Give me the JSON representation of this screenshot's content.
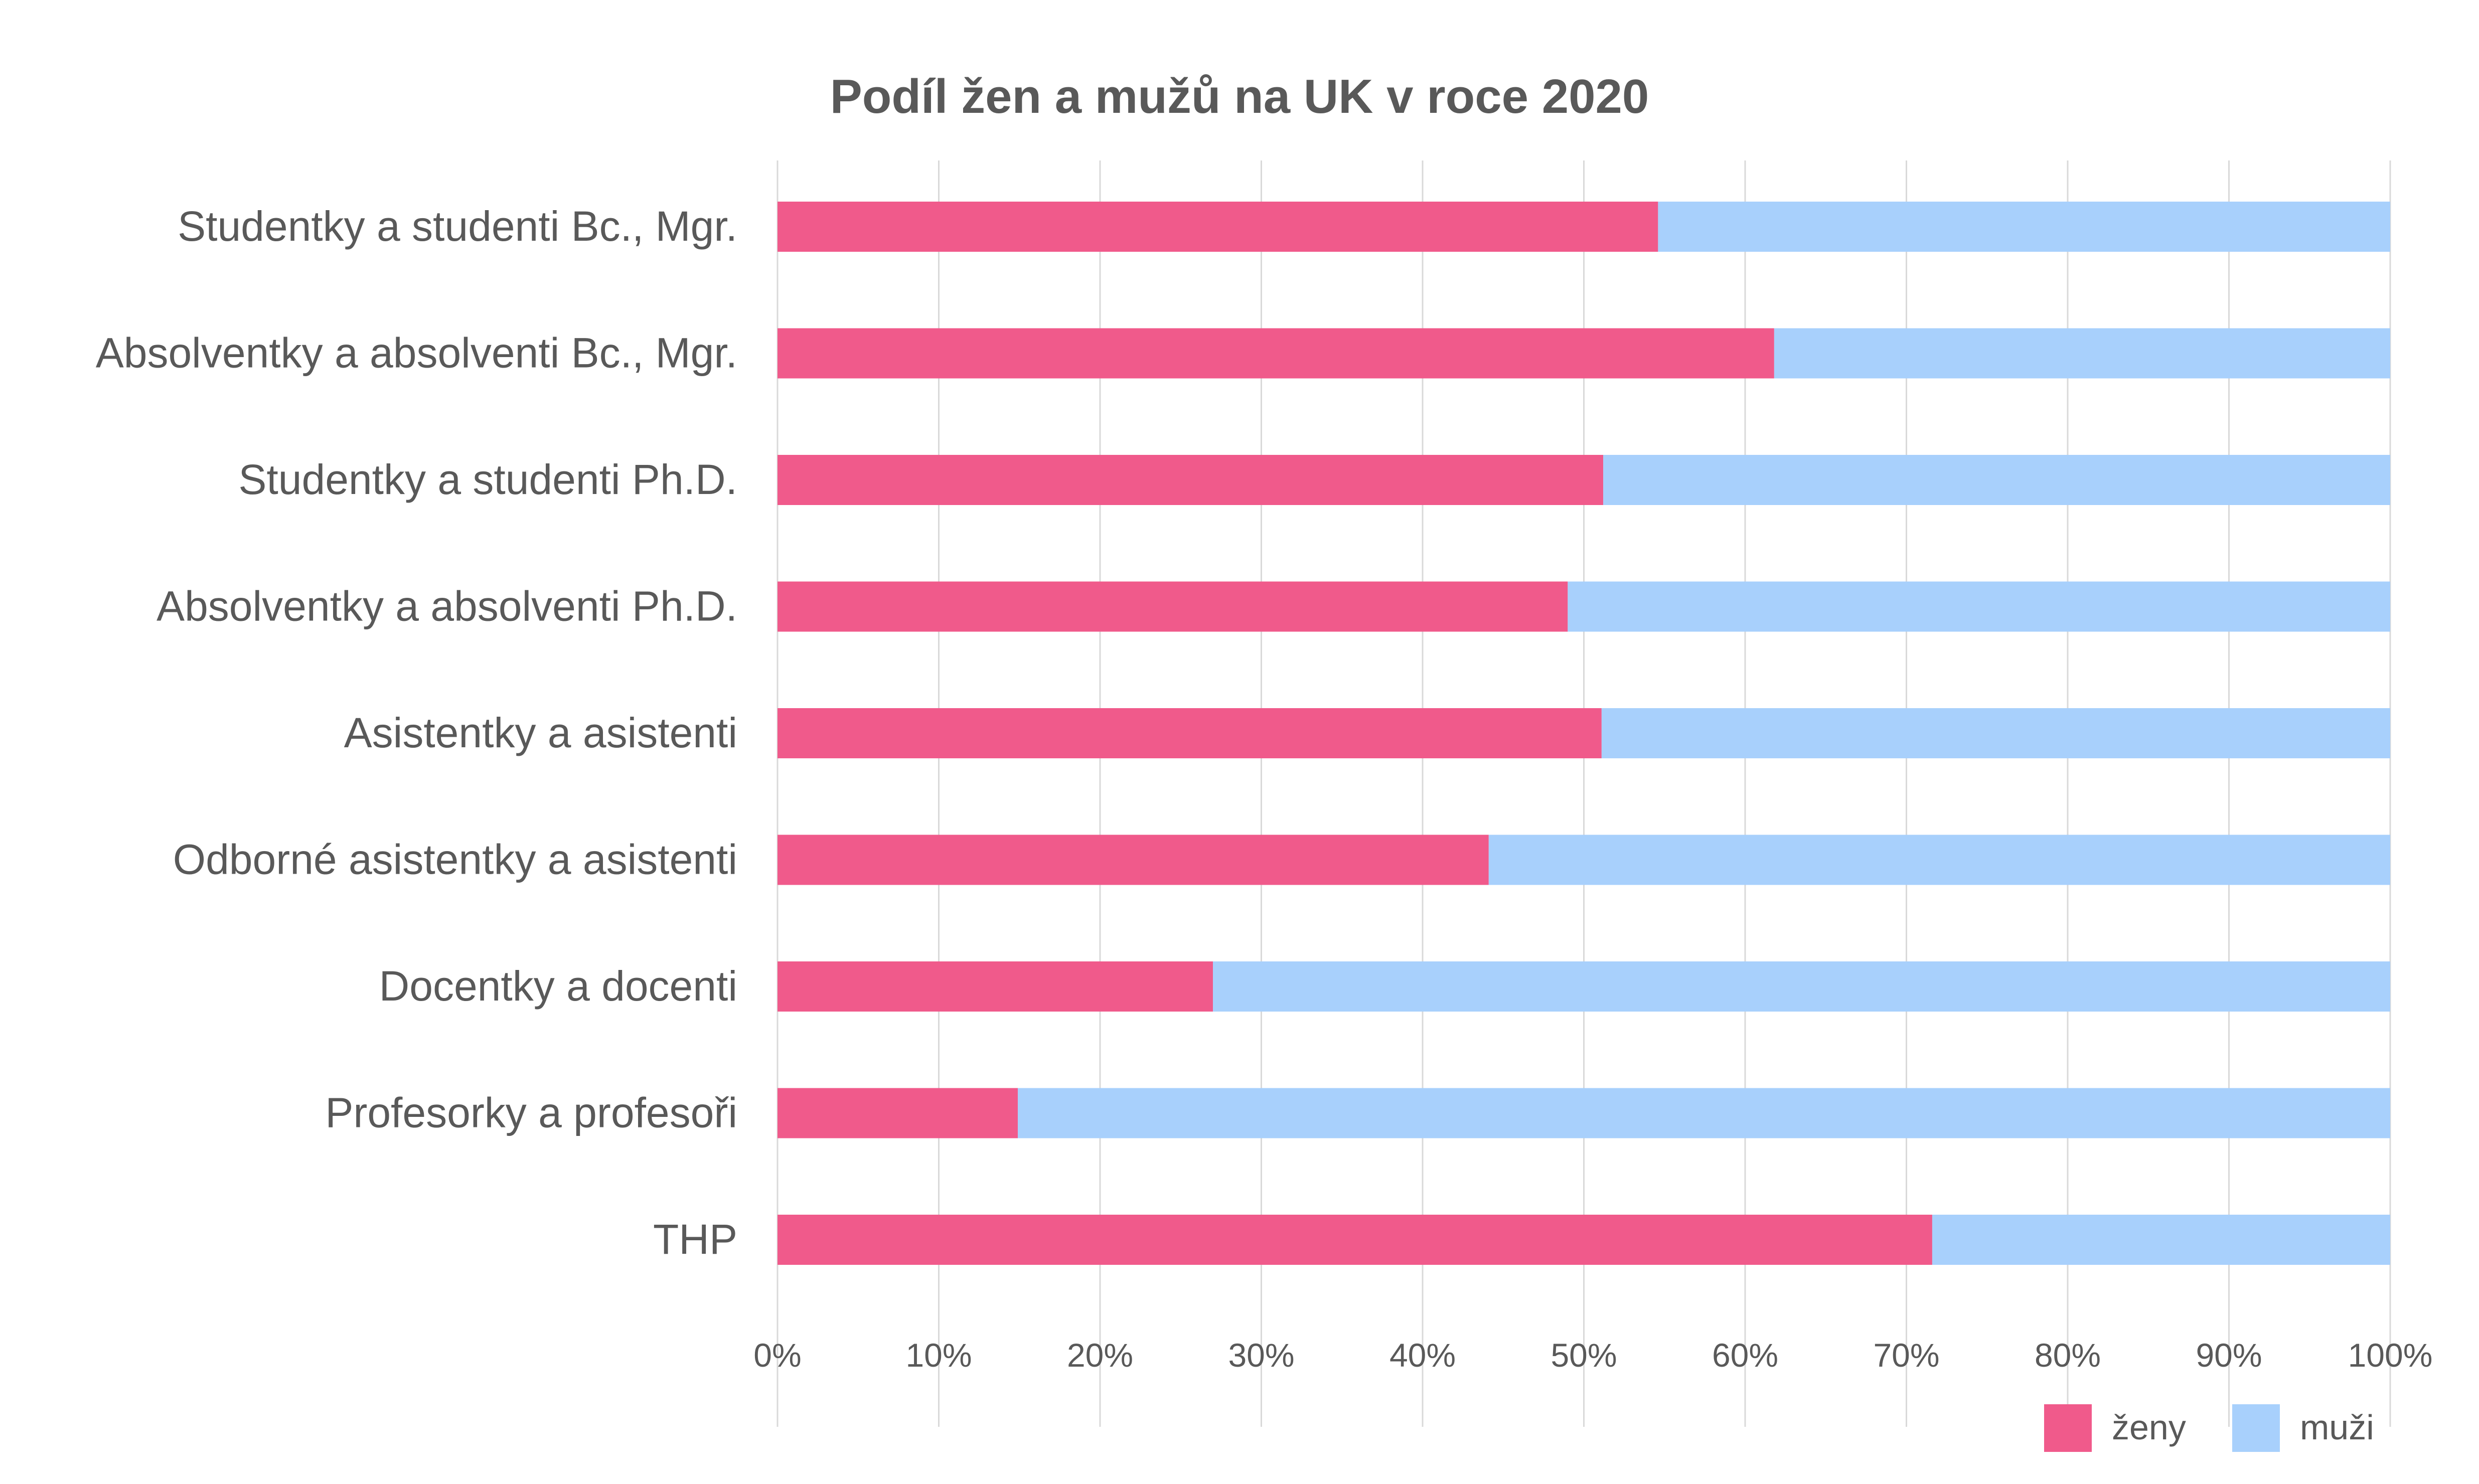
{
  "chart_data": {
    "type": "bar",
    "orientation": "horizontal",
    "stacked": true,
    "title": "Podíl žen a mužů na UK v roce 2020",
    "categories": [
      "Studentky a studenti Bc., Mgr.",
      "Absolventky a absolventi Bc., Mgr.",
      "Studentky a studenti Ph.D.",
      "Absolventky a absolventi Ph.D.",
      "Asistentky a asistenti",
      "Odborné asistentky a asistenti",
      "Docentky a docenti",
      "Profesorky a profesoři",
      "THP"
    ],
    "series": [
      {
        "name": "ženy",
        "color": "#f05a8b",
        "values": [
          54.6,
          61.8,
          51.2,
          49.0,
          51.1,
          44.1,
          27.0,
          14.9,
          71.6
        ]
      },
      {
        "name": "muži",
        "color": "#a8d0fc",
        "values": [
          45.4,
          38.2,
          48.8,
          51.0,
          48.9,
          55.9,
          73.0,
          85.1,
          28.4
        ]
      }
    ],
    "xlim": [
      0,
      100
    ],
    "x_ticks": [
      "0%",
      "10%",
      "20%",
      "30%",
      "40%",
      "50%",
      "60%",
      "70%",
      "80%",
      "90%",
      "100%"
    ],
    "grid": true,
    "legend": "bottom-right"
  }
}
